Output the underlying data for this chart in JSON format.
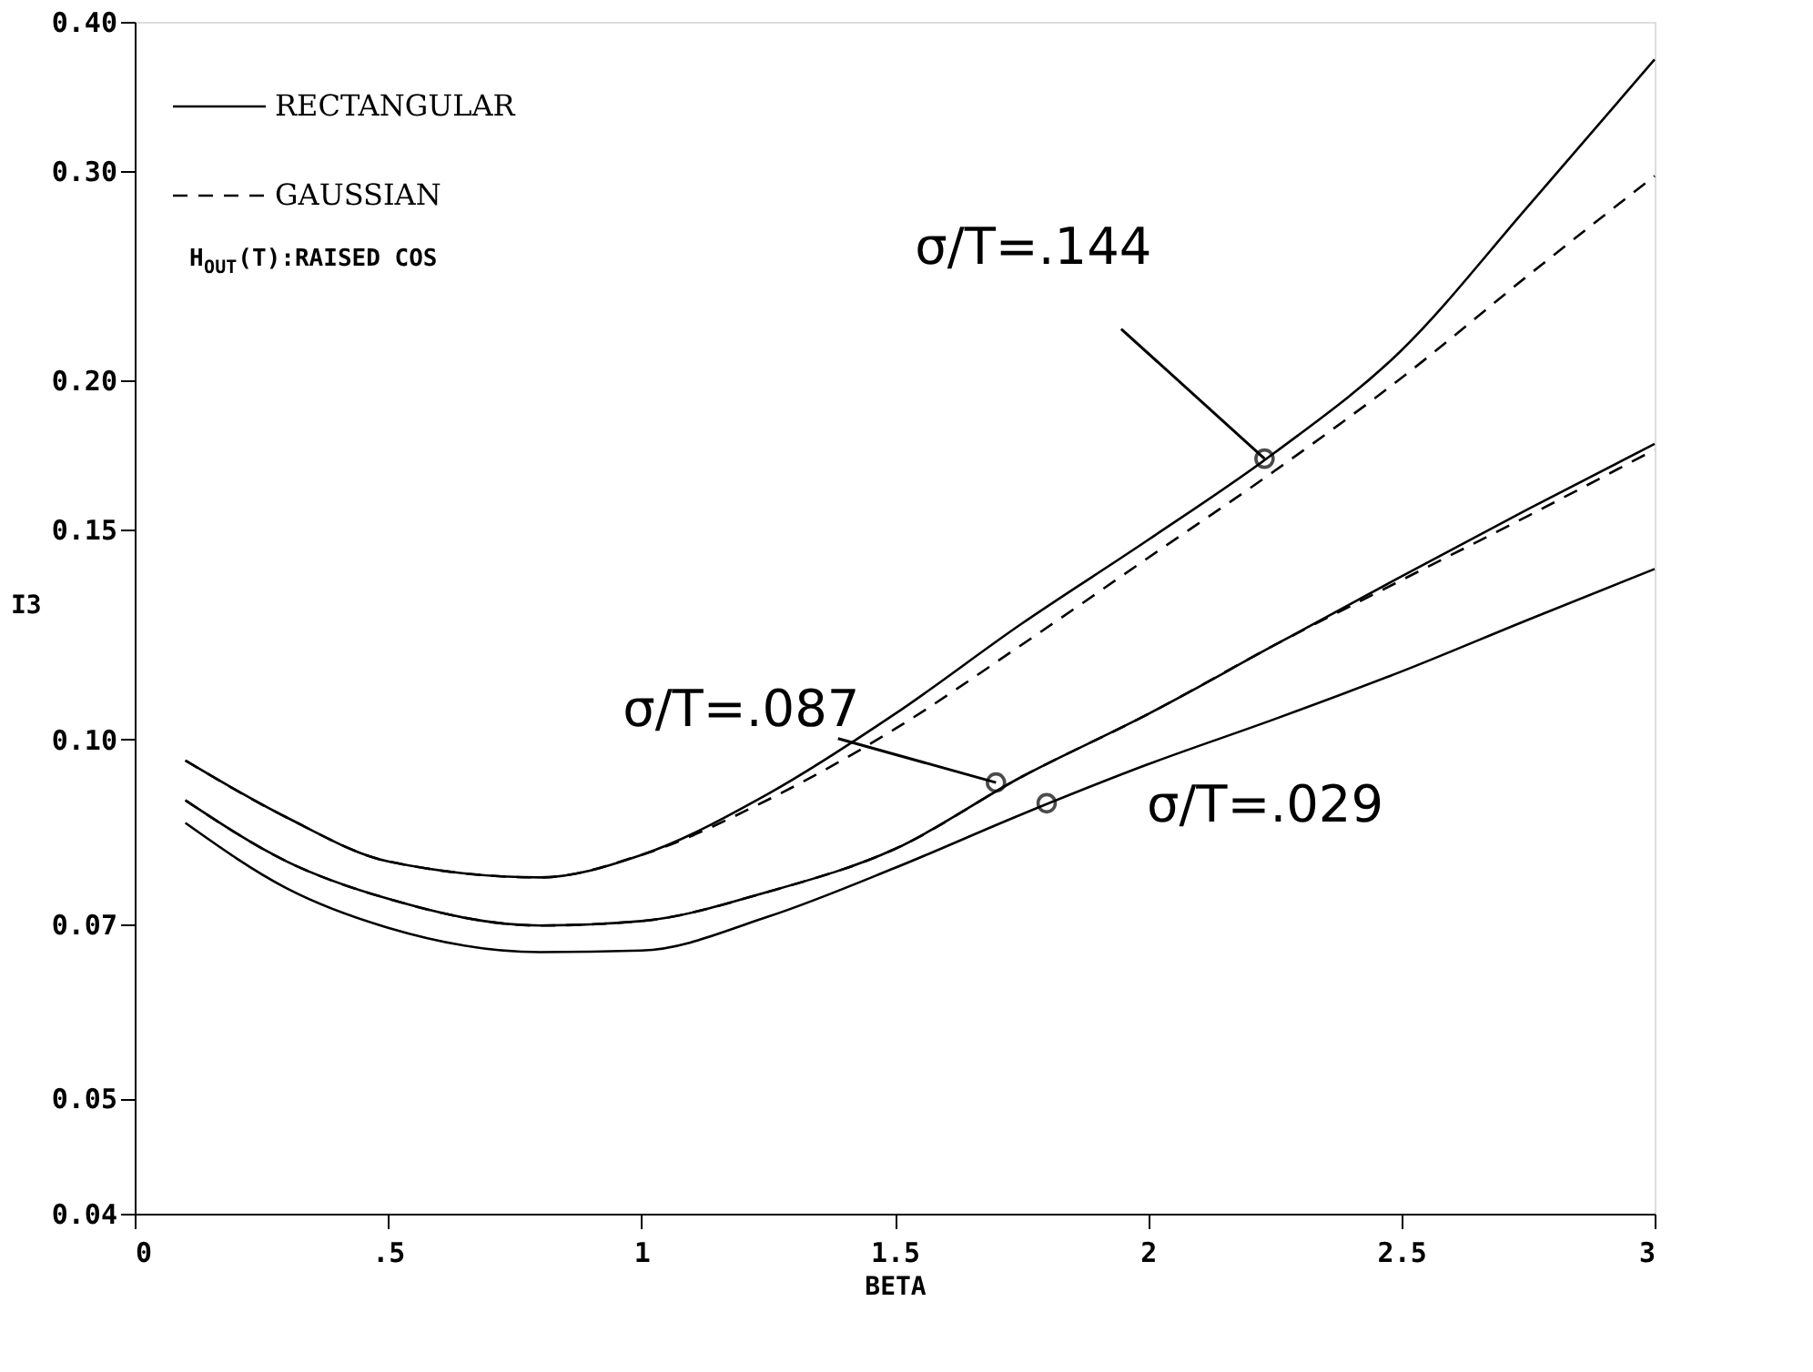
{
  "chart_data": {
    "type": "line",
    "xlabel": "BETA",
    "ylabel": "I3",
    "log": "y",
    "grid": false,
    "marker": "none",
    "xlim": [
      0,
      3
    ],
    "xticks": [
      0,
      {
        "value": 0.5,
        "label": ".5"
      },
      1,
      1.5,
      2,
      2.5,
      3
    ],
    "ylim": [
      0.04,
      0.4
    ],
    "yticks": [
      {
        "value": 0.04,
        "label": "0.04"
      },
      {
        "value": 0.05,
        "label": "0.05"
      },
      {
        "value": 0.07,
        "label": "0.07"
      },
      {
        "value": 0.1,
        "label": "0.10"
      },
      {
        "value": 0.15,
        "label": "0.15"
      },
      {
        "value": 0.2,
        "label": "0.20"
      },
      {
        "value": 0.3,
        "label": "0.30"
      },
      {
        "value": 0.4,
        "label": "0.40"
      }
    ],
    "legend": "top left",
    "x": [
      0.1,
      0.3,
      0.5,
      0.8,
      1.0,
      1.25,
      1.5,
      1.75,
      2.0,
      2.25,
      2.5,
      2.75,
      3.0
    ],
    "series": [
      {
        "name": "RECTANGULAR",
        "color": "#000000",
        "line_style": "solid",
        "values": [
          0.096,
          0.086,
          0.079,
          0.0766,
          0.08,
          0.09,
          0.105,
          0.125,
          0.147,
          0.174,
          0.212,
          0.28,
          0.372
        ]
      },
      {
        "name": "GAUSSIAN",
        "color": "#000000",
        "line_style": "dashed",
        "values": [
          0.096,
          0.086,
          0.079,
          0.0766,
          0.08,
          0.089,
          0.102,
          0.12,
          0.142,
          0.168,
          0.201,
          0.245,
          0.297
        ]
      },
      {
        "color": "#000000",
        "line_style": "solid",
        "values": [
          0.0889,
          0.079,
          0.0735,
          0.0698,
          0.0704,
          0.0745,
          0.0809,
          0.093,
          0.105,
          0.12,
          0.137,
          0.156,
          0.177
        ]
      },
      {
        "color": "#000000",
        "line_style": "dashed",
        "values": [
          0.0889,
          0.079,
          0.0735,
          0.0698,
          0.0704,
          0.0745,
          0.0809,
          0.093,
          0.105,
          0.12,
          0.136,
          0.154,
          0.175
        ]
      },
      {
        "color": "#000000",
        "line_style": "solid",
        "values": [
          0.0851,
          0.075,
          0.0695,
          0.0663,
          0.0665,
          0.071,
          0.078,
          0.0865,
          0.0953,
          0.104,
          0.114,
          0.126,
          0.139
        ]
      }
    ],
    "annotations": [
      {
        "text": "σ/T=.144",
        "x": 2.23,
        "y": 0.172
      },
      {
        "text": "σ/T=.087",
        "x": 1.7,
        "y": 0.092
      },
      {
        "text": "σ/T=.029",
        "x": 1.8,
        "y": 0.0884
      },
      "H$_{OUT}$(T):RAISED COS"
    ]
  }
}
